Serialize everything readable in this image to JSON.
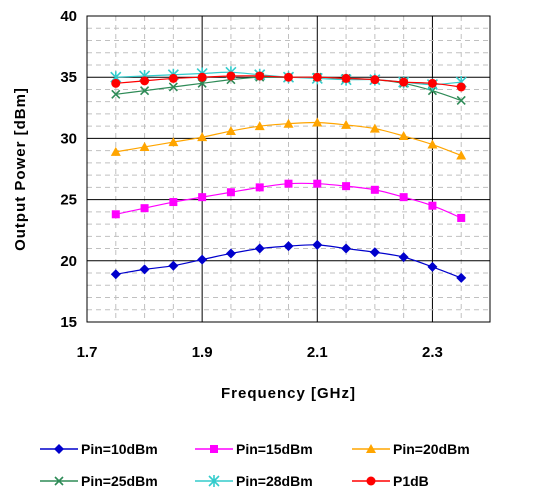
{
  "chart_data": {
    "type": "line",
    "xlabel": "Frequency [GHz]",
    "ylabel": "Output Power [dBm]",
    "xlim": [
      1.7,
      2.4
    ],
    "ylim": [
      15,
      40
    ],
    "x_ticks": [
      1.7,
      1.9,
      2.1,
      2.3
    ],
    "x_tick_labels": [
      "1.7",
      "1.9",
      "2.1",
      "2.3"
    ],
    "y_ticks": [
      15,
      20,
      25,
      30,
      35,
      40
    ],
    "y_tick_labels": [
      "15",
      "20",
      "25",
      "30",
      "35",
      "40"
    ],
    "grid": true,
    "legend_position": "bottom",
    "x": [
      1.75,
      1.8,
      1.85,
      1.9,
      1.95,
      2.0,
      2.05,
      2.1,
      2.15,
      2.2,
      2.25,
      2.3,
      2.35
    ],
    "series": [
      {
        "name": "Pin=10dBm",
        "color": "#0000cc",
        "marker": "diamond",
        "values": [
          18.9,
          19.3,
          19.6,
          20.1,
          20.6,
          21.0,
          21.2,
          21.3,
          21.0,
          20.7,
          20.3,
          19.5,
          18.6
        ]
      },
      {
        "name": "Pin=15dBm",
        "color": "#ff00ff",
        "marker": "square",
        "values": [
          23.8,
          24.3,
          24.8,
          25.2,
          25.6,
          26.0,
          26.3,
          26.3,
          26.1,
          25.8,
          25.2,
          24.5,
          23.5
        ]
      },
      {
        "name": "Pin=20dBm",
        "color": "#ffa500",
        "marker": "triangle",
        "values": [
          28.9,
          29.3,
          29.7,
          30.1,
          30.6,
          31.0,
          31.2,
          31.3,
          31.1,
          30.8,
          30.2,
          29.5,
          28.6
        ]
      },
      {
        "name": "Pin=25dBm",
        "color": "#2e8b57",
        "marker": "x",
        "values": [
          33.6,
          33.9,
          34.2,
          34.5,
          34.8,
          35.0,
          35.0,
          35.0,
          34.9,
          34.8,
          34.5,
          33.9,
          33.1
        ]
      },
      {
        "name": "Pin=28dBm",
        "color": "#33cccc",
        "marker": "asterisk",
        "values": [
          35.0,
          35.1,
          35.2,
          35.3,
          35.4,
          35.2,
          35.0,
          34.9,
          34.8,
          34.8,
          34.6,
          34.4,
          34.6
        ]
      },
      {
        "name": "P1dB",
        "color": "#ff0000",
        "marker": "circle",
        "values": [
          34.5,
          34.7,
          34.9,
          35.0,
          35.1,
          35.1,
          35.0,
          35.0,
          34.9,
          34.8,
          34.6,
          34.5,
          34.2
        ]
      }
    ]
  }
}
